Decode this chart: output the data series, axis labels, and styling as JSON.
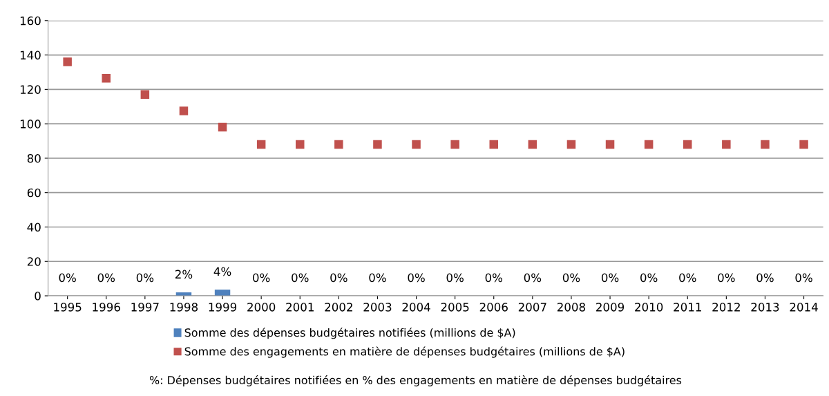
{
  "chart_data": {
    "type": "bar",
    "categories": [
      "1995",
      "1996",
      "1997",
      "1998",
      "1999",
      "2000",
      "2001",
      "2002",
      "2003",
      "2004",
      "2005",
      "2006",
      "2007",
      "2008",
      "2009",
      "2010",
      "2011",
      "2012",
      "2013",
      "2014"
    ],
    "series": [
      {
        "name": "Somme des dépenses budgétaires notifiées (millions de $A)",
        "color": "#4f81bd",
        "values": [
          0,
          0,
          0,
          2,
          3.6,
          0,
          0,
          0,
          0,
          0,
          0,
          0,
          0,
          0,
          0,
          0,
          0,
          0,
          0,
          0
        ],
        "value_labels": [
          "0%",
          "0%",
          "0%",
          "2%",
          "4%",
          "0%",
          "0%",
          "0%",
          "0%",
          "0%",
          "0%",
          "0%",
          "0%",
          "0%",
          "0%",
          "0%",
          "0%",
          "0%",
          "0%",
          "0%"
        ]
      },
      {
        "name": "Somme des engagements en matière de dépenses budgétaires (millions de $A)",
        "type": "scatter",
        "marker": "square",
        "color": "#c0504d",
        "values": [
          136,
          126.5,
          117,
          107.5,
          98,
          88,
          88,
          88,
          88,
          88,
          88,
          88,
          88,
          88,
          88,
          88,
          88,
          88,
          88,
          88
        ]
      }
    ],
    "ylim": [
      0,
      160
    ],
    "yticks": [
      0,
      20,
      40,
      60,
      80,
      100,
      120,
      140,
      160
    ],
    "grid": "y",
    "legend": "bottom",
    "annotations": [
      "%: Dépenses budgétaires notifiées en % des engagements en matière de dépenses budgétaires"
    ]
  }
}
